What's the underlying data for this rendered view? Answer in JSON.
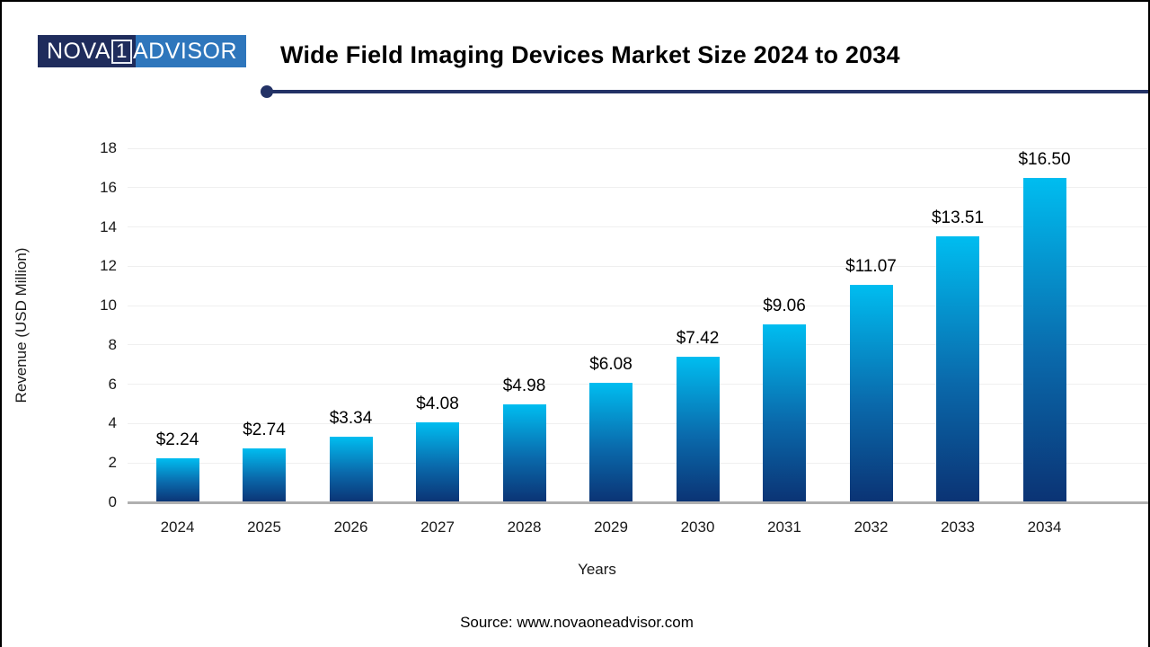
{
  "header": {
    "logo": {
      "part1": "NOVA",
      "part2": "1",
      "part3": "ADVISOR"
    },
    "title": "Wide Field Imaging Devices Market Size 2024 to 2034"
  },
  "chart_data": {
    "type": "bar",
    "title": "Wide Field Imaging Devices Market Size 2024 to 2034",
    "categories": [
      "2024",
      "2025",
      "2026",
      "2027",
      "2028",
      "2029",
      "2030",
      "2031",
      "2032",
      "2033",
      "2034"
    ],
    "values": [
      2.24,
      2.74,
      3.34,
      4.08,
      4.98,
      6.08,
      7.42,
      9.06,
      11.07,
      13.51,
      16.5
    ],
    "labels": [
      "$2.24",
      "$2.74",
      "$3.34",
      "$4.08",
      "$4.98",
      "$6.08",
      "$7.42",
      "$9.06",
      "$11.07",
      "$13.51",
      "$16.50"
    ],
    "xlabel": "Years",
    "ylabel": "Revenue (USD Million)",
    "ylim": [
      0,
      18
    ],
    "yticks": [
      0,
      2,
      4,
      6,
      8,
      10,
      12,
      14,
      16,
      18
    ],
    "grid": true,
    "legend_position": "none",
    "bar_gradient_top": "#00bdf0",
    "bar_gradient_bottom": "#0b3374"
  },
  "footer": {
    "source": "Source: www.novaoneadvisor.com"
  },
  "colors": {
    "logo_dark": "#1f2c5c",
    "logo_light": "#2e76bc",
    "divider": "#233266",
    "gridline": "#efefef",
    "axis_line": "#b0b0b0"
  }
}
